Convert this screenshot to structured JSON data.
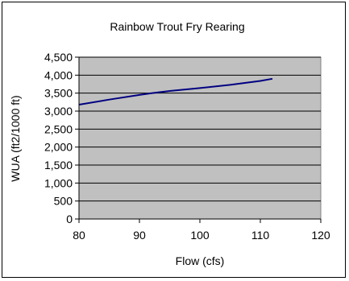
{
  "chart_data": {
    "type": "line",
    "title": "Rainbow Trout Fry Rearing",
    "xlabel": "Flow (cfs)",
    "ylabel": "WUA (ft2/1000 ft)",
    "xlim": [
      80,
      120
    ],
    "ylim": [
      0,
      4500
    ],
    "xticks": [
      "80",
      "90",
      "100",
      "110",
      "120"
    ],
    "yticks": [
      "0",
      "500",
      "1,000",
      "1,500",
      "2,000",
      "2,500",
      "3,000",
      "3,500",
      "4,000",
      "4,500"
    ],
    "grid": true,
    "plot_background": "#c0c0c0",
    "series_color": "#000080",
    "series": [
      {
        "x": [
          80,
          85,
          90,
          92,
          95,
          100,
          105,
          110,
          112
        ],
        "y": [
          3180,
          3320,
          3450,
          3500,
          3560,
          3640,
          3730,
          3840,
          3900
        ]
      }
    ]
  }
}
